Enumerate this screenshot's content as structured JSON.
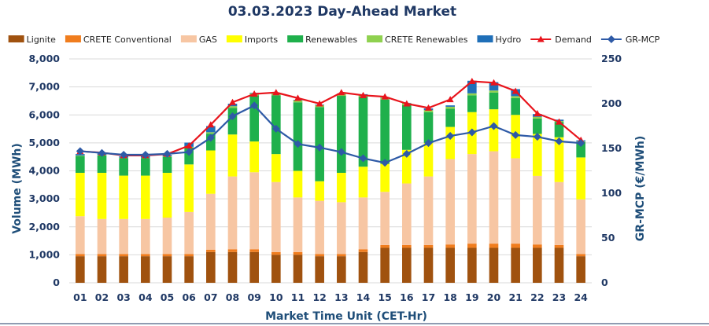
{
  "chart_data": {
    "type": "bar",
    "title": "03.03.2023  Day-Ahead Market",
    "xlabel": "Market Time Unit (CET-Hr)",
    "ylabel": "Volume (MWh)",
    "y2label": "GR-MCP (€/MWh)",
    "ylim": [
      0,
      8000
    ],
    "y2lim": [
      0,
      250
    ],
    "yticks": [
      0,
      1000,
      2000,
      3000,
      4000,
      5000,
      6000,
      7000,
      8000
    ],
    "yticklabels": [
      "0",
      "1,000",
      "2,000",
      "3,000",
      "4,000",
      "5,000",
      "6,000",
      "7,000",
      "8,000"
    ],
    "y2ticks": [
      0,
      50,
      100,
      150,
      200,
      250
    ],
    "y2ticklabels": [
      "0",
      "50",
      "100",
      "150",
      "200",
      "250"
    ],
    "categories": [
      "01",
      "02",
      "03",
      "04",
      "05",
      "06",
      "07",
      "08",
      "09",
      "10",
      "11",
      "12",
      "13",
      "14",
      "15",
      "16",
      "17",
      "18",
      "19",
      "20",
      "21",
      "22",
      "23",
      "24"
    ],
    "stacked": true,
    "series": [
      {
        "name": "Lignite",
        "color": "#a0520f",
        "values": [
          950,
          950,
          950,
          950,
          950,
          950,
          1100,
          1100,
          1100,
          1000,
          1000,
          950,
          950,
          1100,
          1250,
          1250,
          1250,
          1250,
          1250,
          1250,
          1250,
          1250,
          1250,
          950
        ]
      },
      {
        "name": "CRETE Conventional",
        "color": "#f07d1e",
        "values": [
          80,
          80,
          80,
          80,
          80,
          80,
          80,
          100,
          100,
          100,
          100,
          80,
          80,
          100,
          100,
          100,
          100,
          120,
          150,
          150,
          150,
          120,
          100,
          80
        ]
      },
      {
        "name": "GAS",
        "color": "#f7c6a3",
        "values": [
          1350,
          1250,
          1250,
          1250,
          1300,
          1500,
          2000,
          2600,
          2750,
          2500,
          1950,
          1900,
          1850,
          1850,
          1900,
          2200,
          2450,
          3050,
          3200,
          3300,
          3050,
          2450,
          2250,
          1950
        ]
      },
      {
        "name": "Imports",
        "color": "#ffff00",
        "values": [
          1550,
          1650,
          1550,
          1550,
          1600,
          1700,
          1550,
          1500,
          1100,
          1000,
          950,
          700,
          1050,
          1100,
          1000,
          1200,
          1200,
          1150,
          1500,
          1500,
          1550,
          1500,
          1600,
          1500
        ]
      },
      {
        "name": "Renewables",
        "color": "#1fb04c",
        "values": [
          600,
          620,
          620,
          620,
          570,
          600,
          600,
          950,
          1650,
          2100,
          2450,
          2650,
          2750,
          2500,
          2300,
          1600,
          1100,
          650,
          600,
          600,
          600,
          550,
          550,
          550
        ]
      },
      {
        "name": "CRETE Renewables",
        "color": "#8fd14f",
        "values": [
          20,
          20,
          20,
          20,
          20,
          30,
          50,
          60,
          70,
          70,
          70,
          70,
          70,
          70,
          70,
          70,
          70,
          70,
          70,
          70,
          70,
          60,
          30,
          20
        ]
      },
      {
        "name": "Hydro",
        "color": "#1f6fb8",
        "values": [
          50,
          50,
          50,
          50,
          50,
          150,
          220,
          90,
          20,
          10,
          20,
          20,
          10,
          20,
          10,
          10,
          60,
          50,
          450,
          300,
          250,
          100,
          50,
          40
        ]
      }
    ],
    "lines": [
      {
        "name": "Demand",
        "axis": "left",
        "color": "#e8141c",
        "marker": "triangle",
        "values": [
          4700,
          4650,
          4550,
          4550,
          4600,
          4900,
          5650,
          6450,
          6750,
          6800,
          6600,
          6400,
          6800,
          6700,
          6650,
          6400,
          6250,
          6550,
          7200,
          7150,
          6850,
          6050,
          5750,
          5100
        ]
      },
      {
        "name": "GR-MCP",
        "axis": "right",
        "color": "#2e5aa6",
        "marker": "diamond",
        "values": [
          147,
          145,
          143,
          143,
          144,
          146,
          162,
          186,
          198,
          172,
          155,
          151,
          146,
          139,
          134,
          144,
          156,
          164,
          168,
          175,
          165,
          163,
          158,
          156
        ]
      }
    ],
    "legend": [
      "Lignite",
      "CRETE Conventional",
      "GAS",
      "Imports",
      "Renewables",
      "CRETE Renewables",
      "Hydro",
      "Demand",
      "GR-MCP"
    ],
    "legend_position": "top"
  }
}
